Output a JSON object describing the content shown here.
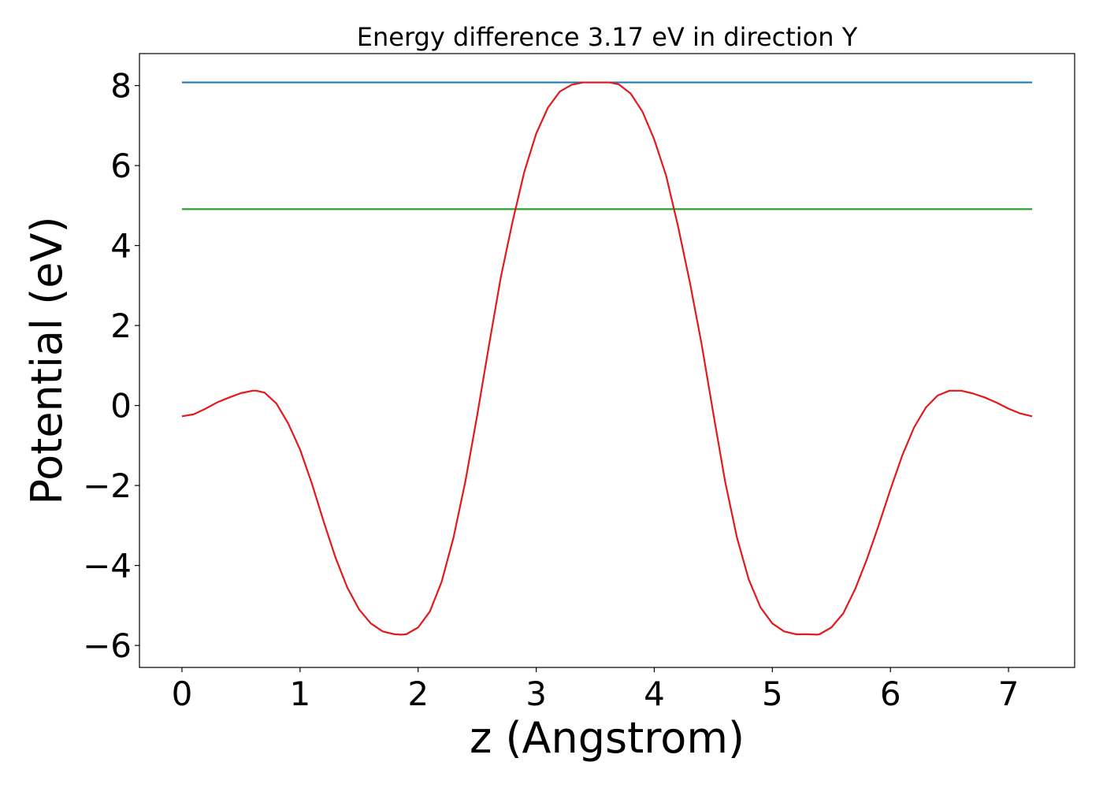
{
  "chart_data": {
    "type": "line",
    "title": "Energy difference 3.17 eV in direction Y",
    "xlabel": "z (Angstrom)",
    "ylabel": "Potential (eV)",
    "xlim": [
      -0.36,
      7.56
    ],
    "ylim": [
      -6.55,
      8.8
    ],
    "xticks": [
      0,
      1,
      2,
      3,
      4,
      5,
      6,
      7
    ],
    "yticks": [
      -6,
      -4,
      -2,
      0,
      2,
      4,
      6,
      8
    ],
    "ytick_labels": [
      "−6",
      "−4",
      "−2",
      "0",
      "2",
      "4",
      "6",
      "8"
    ],
    "grid": false,
    "legend": "none",
    "series": [
      {
        "color": "#1f77b4",
        "x": [
          0,
          7.2
        ],
        "y": [
          8.08,
          8.08
        ]
      },
      {
        "color": "#2ca02c",
        "x": [
          0,
          7.2
        ],
        "y": [
          4.91,
          4.91
        ]
      },
      {
        "color": "#e3191c",
        "x": [
          0,
          0.1,
          0.2,
          0.3,
          0.4,
          0.5,
          0.6,
          0.63,
          0.7,
          0.8,
          0.9,
          1.0,
          1.1,
          1.2,
          1.3,
          1.4,
          1.5,
          1.6,
          1.7,
          1.8,
          1.86,
          1.9,
          2.0,
          2.1,
          2.2,
          2.3,
          2.4,
          2.5,
          2.6,
          2.7,
          2.8,
          2.9,
          3.0,
          3.1,
          3.2,
          3.3,
          3.4,
          3.5,
          3.62,
          3.7,
          3.8,
          3.9,
          4.0,
          4.1,
          4.2,
          4.3,
          4.4,
          4.5,
          4.6,
          4.7,
          4.8,
          4.9,
          5.0,
          5.1,
          5.2,
          5.3,
          5.38,
          5.4,
          5.5,
          5.6,
          5.7,
          5.8,
          5.9,
          6.0,
          6.1,
          6.2,
          6.3,
          6.4,
          6.5,
          6.6,
          6.7,
          6.8,
          6.9,
          7.0,
          7.1,
          7.2
        ],
        "y": [
          -0.27,
          -0.22,
          -0.08,
          0.08,
          0.2,
          0.31,
          0.37,
          0.37,
          0.32,
          0.05,
          -0.45,
          -1.1,
          -1.95,
          -2.9,
          -3.8,
          -4.55,
          -5.1,
          -5.45,
          -5.65,
          -5.72,
          -5.73,
          -5.72,
          -5.55,
          -5.15,
          -4.4,
          -3.3,
          -1.9,
          -0.25,
          1.5,
          3.2,
          4.6,
          5.85,
          6.8,
          7.45,
          7.85,
          8.02,
          8.08,
          8.08,
          8.08,
          8.03,
          7.8,
          7.35,
          6.65,
          5.75,
          4.5,
          3.1,
          1.55,
          -0.2,
          -1.9,
          -3.3,
          -4.35,
          -5.05,
          -5.45,
          -5.65,
          -5.72,
          -5.72,
          -5.73,
          -5.72,
          -5.55,
          -5.2,
          -4.6,
          -3.85,
          -3.0,
          -2.1,
          -1.25,
          -0.55,
          -0.05,
          0.25,
          0.37,
          0.37,
          0.3,
          0.2,
          0.07,
          -0.08,
          -0.2,
          -0.27
        ]
      }
    ]
  }
}
